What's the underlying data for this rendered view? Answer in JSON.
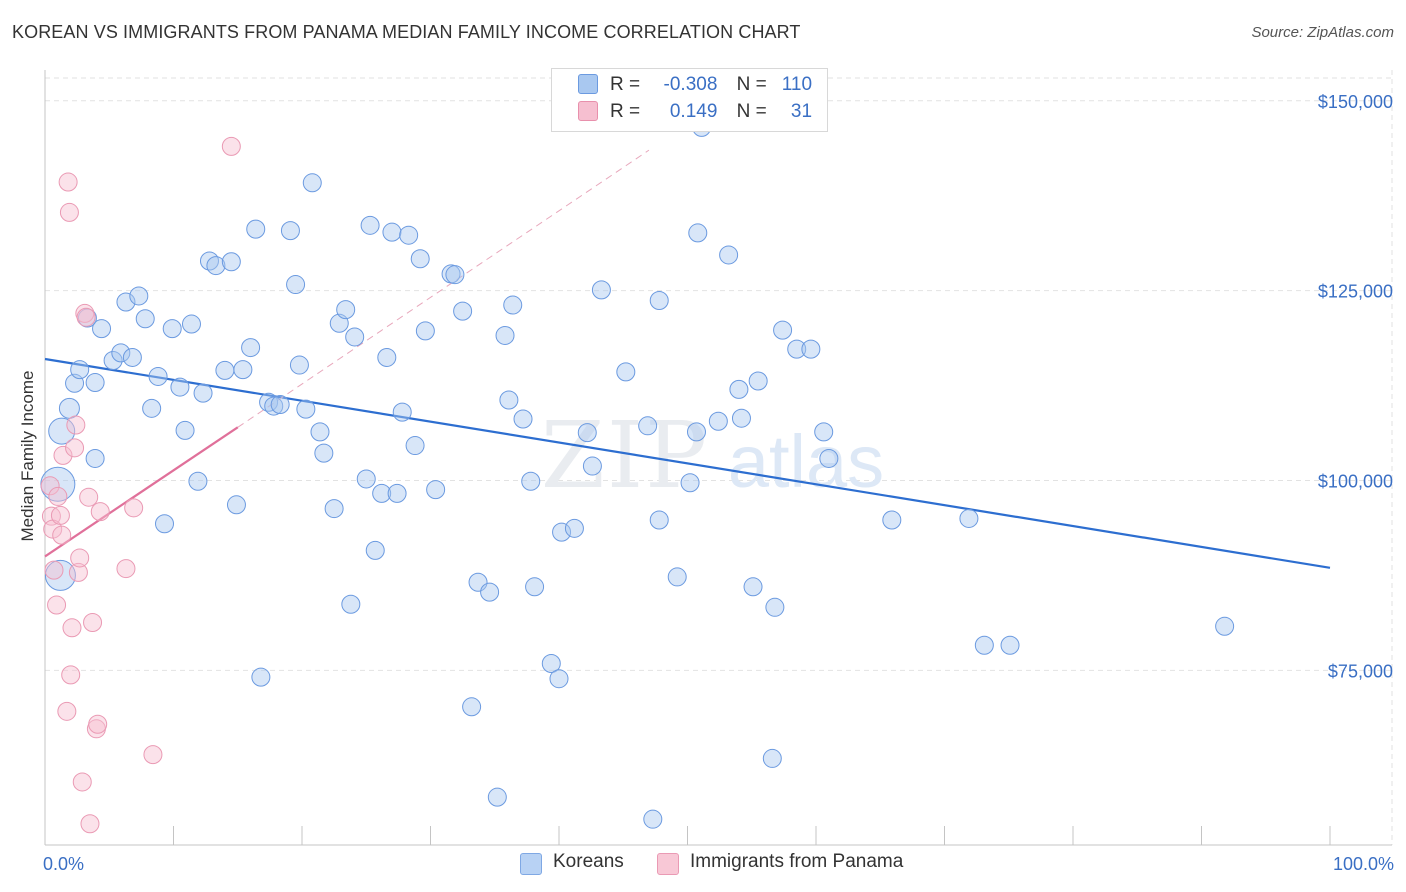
{
  "title": "KOREAN VS IMMIGRANTS FROM PANAMA MEDIAN FAMILY INCOME CORRELATION CHART",
  "source": "Source: ZipAtlas.com",
  "watermark": {
    "zip": "ZIP",
    "atlas": "atlas"
  },
  "legend_top": [
    {
      "r_label": "R =",
      "r_value": "-0.308",
      "n_label": "N =",
      "n_value": "110",
      "color": "#a9c8f0",
      "border": "#6b9ae0"
    },
    {
      "r_label": "R =",
      "r_value": "0.149",
      "n_label": "N =",
      "n_value": "31",
      "color": "#f6bfd0",
      "border": "#e890ac"
    }
  ],
  "legend_bottom": [
    {
      "label": "Koreans",
      "color": "#b8d2f4",
      "border": "#7fa8e4"
    },
    {
      "label": "Immigrants from Panama",
      "color": "#f8c8d6",
      "border": "#ea9ab4"
    }
  ],
  "chart_data": {
    "type": "scatter",
    "xlabel": "",
    "ylabel": "Median Family Income",
    "xlim": [
      0,
      100
    ],
    "ylim": [
      52000,
      153000
    ],
    "x_tick_labels": [
      "0.0%",
      "100.0%"
    ],
    "y_ticks": [
      75000,
      100000,
      125000,
      150000
    ],
    "y_tick_labels": [
      "$75,000",
      "$100,000",
      "$125,000",
      "$150,000"
    ],
    "grid": true,
    "series": [
      {
        "name": "Koreans",
        "color": "#6b9ae0",
        "fill": "rgba(169,200,240,0.45)",
        "trend": {
          "x": [
            0,
            100
          ],
          "y": [
            116000,
            88500
          ],
          "color": "#2d6ed0"
        },
        "points": [
          [
            1.2,
            87.5,
            16
          ],
          [
            1.0,
            99.5,
            18
          ],
          [
            1.3,
            106.5,
            14
          ],
          [
            1.9,
            109.5,
            11
          ],
          [
            2.3,
            112.8,
            10
          ],
          [
            2.7,
            114.6,
            10
          ],
          [
            3.9,
            112.9,
            10
          ],
          [
            4.4,
            120.0,
            10
          ],
          [
            3.3,
            121.4,
            10
          ],
          [
            3.9,
            102.9,
            10
          ],
          [
            5.3,
            115.8,
            10
          ],
          [
            5.9,
            116.8,
            10
          ],
          [
            6.3,
            123.5,
            10
          ],
          [
            6.8,
            116.2,
            10
          ],
          [
            7.3,
            124.3,
            10
          ],
          [
            7.8,
            121.3,
            10
          ],
          [
            8.3,
            109.5,
            10
          ],
          [
            8.8,
            113.7,
            10
          ],
          [
            9.3,
            94.3,
            10
          ],
          [
            9.9,
            120.0,
            10
          ],
          [
            10.5,
            112.3,
            10
          ],
          [
            10.9,
            106.6,
            10
          ],
          [
            11.4,
            120.6,
            10
          ],
          [
            11.9,
            99.9,
            10
          ],
          [
            12.3,
            111.5,
            10
          ],
          [
            12.8,
            128.9,
            10
          ],
          [
            13.3,
            128.3,
            10
          ],
          [
            14.0,
            114.5,
            10
          ],
          [
            14.5,
            128.8,
            10
          ],
          [
            14.9,
            96.8,
            10
          ],
          [
            15.4,
            114.6,
            10
          ],
          [
            16.0,
            117.5,
            10
          ],
          [
            16.4,
            133.1,
            10
          ],
          [
            16.8,
            74.1,
            10
          ],
          [
            17.4,
            110.3,
            10
          ],
          [
            17.8,
            109.8,
            10
          ],
          [
            18.3,
            110.0,
            10
          ],
          [
            19.1,
            132.9,
            10
          ],
          [
            19.5,
            125.8,
            10
          ],
          [
            19.8,
            115.2,
            10
          ],
          [
            20.3,
            109.4,
            10
          ],
          [
            20.8,
            139.2,
            10
          ],
          [
            21.4,
            106.4,
            10
          ],
          [
            21.7,
            103.6,
            10
          ],
          [
            22.5,
            96.3,
            10
          ],
          [
            22.9,
            120.7,
            10
          ],
          [
            23.4,
            122.5,
            10
          ],
          [
            23.8,
            83.7,
            10
          ],
          [
            24.1,
            118.9,
            10
          ],
          [
            25.0,
            100.2,
            10
          ],
          [
            25.3,
            133.6,
            10
          ],
          [
            25.7,
            90.8,
            10
          ],
          [
            26.2,
            98.3,
            10
          ],
          [
            26.6,
            116.2,
            10
          ],
          [
            27.0,
            132.7,
            10
          ],
          [
            27.4,
            98.3,
            10
          ],
          [
            27.8,
            109.0,
            10
          ],
          [
            28.3,
            132.3,
            10
          ],
          [
            28.8,
            104.6,
            10
          ],
          [
            29.2,
            129.2,
            10
          ],
          [
            29.6,
            119.7,
            10
          ],
          [
            30.4,
            98.8,
            10
          ],
          [
            31.6,
            127.2,
            10
          ],
          [
            31.9,
            127.1,
            10
          ],
          [
            32.5,
            122.3,
            10
          ],
          [
            33.2,
            70.2,
            10
          ],
          [
            33.7,
            86.6,
            10
          ],
          [
            34.6,
            85.3,
            10
          ],
          [
            35.2,
            58.3,
            10
          ],
          [
            35.8,
            119.1,
            10
          ],
          [
            36.1,
            110.6,
            10
          ],
          [
            36.4,
            123.1,
            10
          ],
          [
            37.2,
            108.1,
            10
          ],
          [
            38.1,
            86.0,
            10
          ],
          [
            37.8,
            99.9,
            10
          ],
          [
            39.4,
            75.9,
            10
          ],
          [
            40.0,
            73.9,
            10
          ],
          [
            40.2,
            93.2,
            10
          ],
          [
            41.2,
            93.7,
            10
          ],
          [
            42.2,
            106.3,
            10
          ],
          [
            42.6,
            101.9,
            10
          ],
          [
            43.3,
            125.1,
            10
          ],
          [
            45.2,
            114.3,
            10
          ],
          [
            46.9,
            107.2,
            10
          ],
          [
            47.3,
            55.4,
            10
          ],
          [
            47.8,
            94.8,
            10
          ],
          [
            47.8,
            123.7,
            10
          ],
          [
            49.2,
            87.3,
            10
          ],
          [
            50.2,
            99.7,
            10
          ],
          [
            50.7,
            106.4,
            10
          ],
          [
            50.8,
            132.6,
            10
          ],
          [
            51.1,
            146.5,
            10
          ],
          [
            52.4,
            107.8,
            10
          ],
          [
            53.2,
            129.7,
            10
          ],
          [
            54.0,
            112.0,
            10
          ],
          [
            54.2,
            108.2,
            10
          ],
          [
            55.1,
            86.0,
            10
          ],
          [
            55.5,
            113.1,
            10
          ],
          [
            56.6,
            63.4,
            10
          ],
          [
            56.8,
            83.3,
            10
          ],
          [
            57.4,
            119.8,
            10
          ],
          [
            58.5,
            117.3,
            10
          ],
          [
            59.6,
            117.3,
            10
          ],
          [
            60.6,
            106.4,
            10
          ],
          [
            61.0,
            102.9,
            10
          ],
          [
            65.9,
            94.8,
            10
          ],
          [
            71.9,
            95.0,
            10
          ],
          [
            73.1,
            78.3,
            10
          ],
          [
            75.1,
            78.3,
            10
          ],
          [
            91.8,
            80.8,
            10
          ]
        ]
      },
      {
        "name": "Immigrants from Panama",
        "color": "#ea9ab4",
        "fill": "rgba(246,191,208,0.45)",
        "trend": {
          "x": [
            0,
            15
          ],
          "y": [
            90000,
            107000
          ],
          "color": "#e0709a"
        },
        "trend_ext": {
          "x": [
            15,
            47
          ],
          "y": [
            107000,
            143500
          ],
          "color": "#e8a8bc"
        },
        "points": [
          [
            0.4,
            99.3,
            10
          ],
          [
            0.5,
            95.3,
            10
          ],
          [
            0.6,
            93.6,
            10
          ],
          [
            0.7,
            88.2,
            10
          ],
          [
            0.9,
            83.6,
            10
          ],
          [
            1.0,
            97.9,
            10
          ],
          [
            1.2,
            95.4,
            10
          ],
          [
            1.3,
            92.8,
            10
          ],
          [
            1.4,
            103.3,
            10
          ],
          [
            1.7,
            69.6,
            10
          ],
          [
            1.9,
            135.3,
            10
          ],
          [
            1.8,
            139.3,
            10
          ],
          [
            2.0,
            74.4,
            10
          ],
          [
            2.1,
            80.6,
            10
          ],
          [
            2.3,
            104.3,
            10
          ],
          [
            2.4,
            107.3,
            10
          ],
          [
            2.6,
            87.9,
            10
          ],
          [
            2.7,
            89.8,
            10
          ],
          [
            2.9,
            60.3,
            10
          ],
          [
            3.1,
            122.0,
            10
          ],
          [
            3.2,
            121.5,
            10
          ],
          [
            3.4,
            97.8,
            10
          ],
          [
            3.5,
            54.8,
            10
          ],
          [
            3.7,
            81.3,
            10
          ],
          [
            4.0,
            67.3,
            10
          ],
          [
            4.1,
            67.9,
            10
          ],
          [
            4.3,
            95.9,
            10
          ],
          [
            6.3,
            88.4,
            10
          ],
          [
            6.9,
            96.4,
            10
          ],
          [
            8.4,
            63.9,
            10
          ],
          [
            14.5,
            144.0,
            10
          ]
        ]
      }
    ]
  }
}
